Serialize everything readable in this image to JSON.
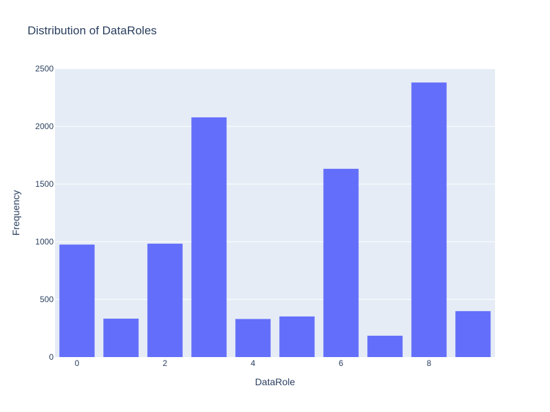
{
  "chart_data": {
    "type": "bar",
    "title": "Distribution of DataRoles",
    "xlabel": "DataRole",
    "ylabel": "Frequency",
    "x": [
      0,
      1,
      2,
      3,
      4,
      5,
      6,
      7,
      8,
      9
    ],
    "values": [
      975,
      333,
      983,
      2078,
      330,
      352,
      1632,
      185,
      2380,
      398
    ],
    "xticks": [
      "0",
      "2",
      "4",
      "6",
      "8"
    ],
    "xtick_values": [
      0,
      2,
      4,
      6,
      8
    ],
    "yticks": [
      "0",
      "500",
      "1000",
      "1500",
      "2000",
      "2500"
    ],
    "ytick_values": [
      0,
      500,
      1000,
      1500,
      2000,
      2500
    ],
    "ylim": [
      0,
      2500
    ],
    "xlim": [
      -0.5,
      9.5
    ],
    "grid": true,
    "legend": "none",
    "colors": {
      "bar": "#636efa",
      "plot_bg": "#e5ecf6",
      "text": "#2a3f5f"
    }
  }
}
